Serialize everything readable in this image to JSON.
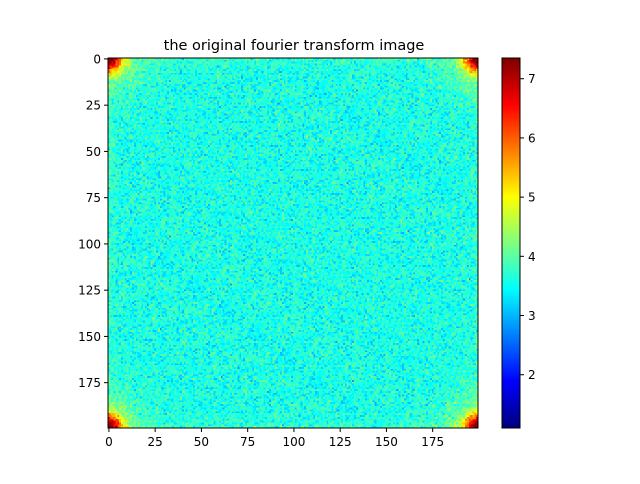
{
  "chart_data": {
    "type": "heatmap",
    "title": "the original fourier transform image",
    "xlabel": "",
    "ylabel": "",
    "image_size": [
      200,
      200
    ],
    "x_ticks": [
      0,
      25,
      50,
      75,
      100,
      125,
      150,
      175
    ],
    "y_ticks": [
      0,
      25,
      50,
      75,
      100,
      125,
      150,
      175
    ],
    "colormap": "jet",
    "colorbar": {
      "vmin": 1.1,
      "vmax": 7.35,
      "ticks": [
        2,
        3,
        4,
        5,
        6,
        7
      ]
    },
    "background_level": 3.6,
    "noise_sd": 0.28,
    "corner_peak": 7.35,
    "corner_radius": 11,
    "grid": false
  }
}
